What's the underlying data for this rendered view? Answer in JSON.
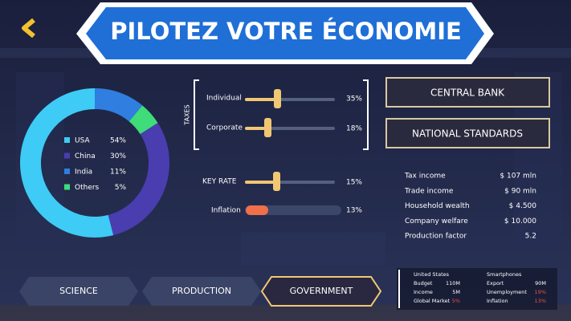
{
  "header": {
    "title": "PILOTEZ VOTRE ÉCONOMIE"
  },
  "donut": {
    "slices": [
      {
        "name": "USA",
        "value": 54,
        "value_label": "54%",
        "color": "#3ecbf5"
      },
      {
        "name": "China",
        "value": 30,
        "value_label": "30%",
        "color": "#4a3db0"
      },
      {
        "name": "India",
        "value": 11,
        "value_label": "11%",
        "color": "#2f7ee0"
      },
      {
        "name": "Others",
        "value": 5,
        "value_label": "5%",
        "color": "#3fdc7a"
      }
    ]
  },
  "taxes": {
    "label": "TAXES",
    "sliders": [
      {
        "name": "Individual",
        "value_label": "35%"
      },
      {
        "name": "Corporate",
        "value_label": "18%"
      }
    ]
  },
  "key_rate": {
    "name": "KEY RATE",
    "value_label": "15%"
  },
  "inflation": {
    "name": "Inflation",
    "value_label": "13%"
  },
  "buttons": [
    "CENTRAL BANK",
    "NATIONAL STANDARDS"
  ],
  "stats": [
    {
      "label": "Tax income",
      "value": "$ 107 mln"
    },
    {
      "label": "Trade income",
      "value": "$ 90 mln"
    },
    {
      "label": "Household wealth",
      "value": "$ 4.500"
    },
    {
      "label": "Company welfare",
      "value": "$ 10.000"
    },
    {
      "label": "Production factor",
      "value": "5.2"
    }
  ],
  "tabs": [
    "SCIENCE",
    "PRODUCTION",
    "GOVERNMENT"
  ],
  "info_panel": {
    "left": {
      "title": "United States",
      "rows": [
        [
          "Budget",
          "110M"
        ],
        [
          "Income",
          "5M"
        ],
        [
          "Global Market",
          "5%"
        ]
      ]
    },
    "right": {
      "title": "Smartphones",
      "rows": [
        [
          "Export",
          "90M"
        ],
        [
          "Unemployment",
          "19%"
        ],
        [
          "Inflation",
          "13%"
        ]
      ]
    }
  }
}
